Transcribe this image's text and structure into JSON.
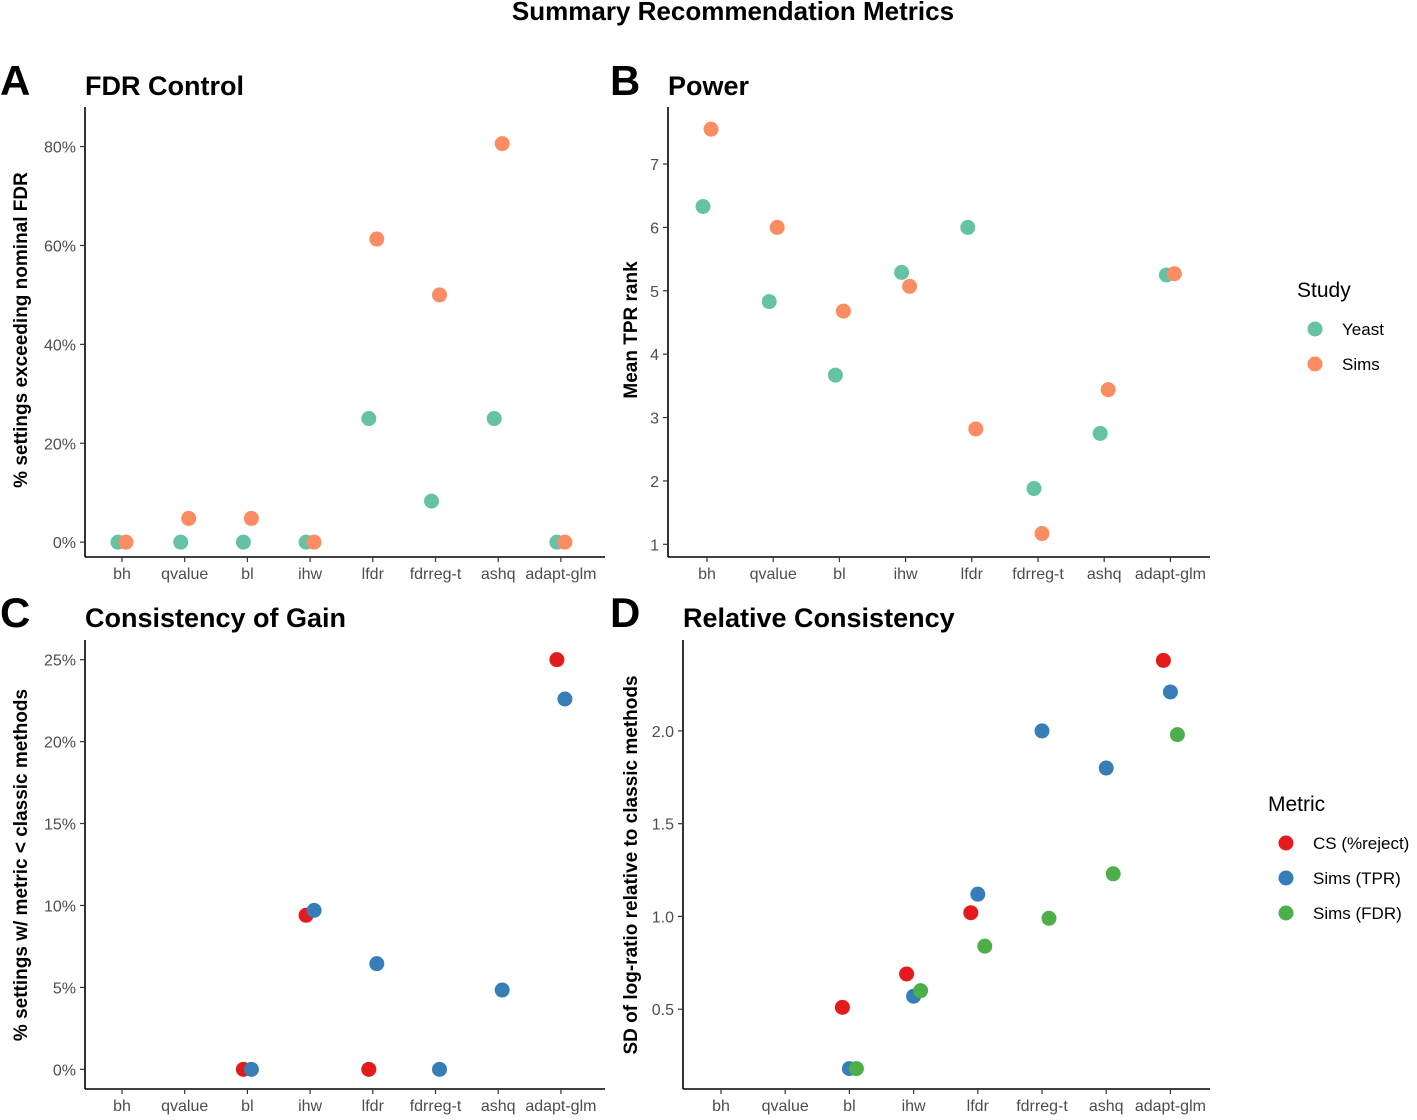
{
  "figure": {
    "title": "Summary Recommendation Metrics"
  },
  "legends": [
    {
      "title": "Study",
      "entries": [
        {
          "label": "Yeast",
          "color": "#66c2a5"
        },
        {
          "label": "Sims",
          "color": "#fc8d62"
        }
      ]
    },
    {
      "title": "Metric",
      "entries": [
        {
          "label": "CS (%reject)",
          "color": "#e41a1c"
        },
        {
          "label": "Sims (TPR)",
          "color": "#377eb8"
        },
        {
          "label": "Sims (FDR)",
          "color": "#4daf4a"
        }
      ]
    }
  ],
  "chart_data": [
    {
      "panel": "A",
      "type": "scatter",
      "title": "FDR Control",
      "xlabel": "",
      "ylabel": "% settings exceeding nominal FDR",
      "categories": [
        "bh",
        "qvalue",
        "bl",
        "ihw",
        "lfdr",
        "fdrreg-t",
        "ashq",
        "adapt-glm"
      ],
      "ylim": [
        -3,
        88
      ],
      "yticks": [
        0,
        20,
        40,
        60,
        80
      ],
      "yticklabels": [
        "0%",
        "20%",
        "40%",
        "60%",
        "80%"
      ],
      "grid": false,
      "legend": "Study",
      "series": [
        {
          "name": "Yeast",
          "color": "#66c2a5",
          "values": [
            0,
            0,
            0,
            0,
            25,
            8.3,
            25,
            0
          ]
        },
        {
          "name": "Sims",
          "color": "#fc8d62",
          "values": [
            0,
            4.8,
            4.8,
            0,
            61.3,
            50,
            80.6,
            0
          ]
        }
      ]
    },
    {
      "panel": "B",
      "type": "scatter",
      "title": "Power",
      "xlabel": "",
      "ylabel": "Mean TPR rank",
      "categories": [
        "bh",
        "qvalue",
        "bl",
        "ihw",
        "lfdr",
        "fdrreg-t",
        "ashq",
        "adapt-glm"
      ],
      "ylim": [
        0.8,
        7.9
      ],
      "yticks": [
        1,
        2,
        3,
        4,
        5,
        6,
        7
      ],
      "yticklabels": [
        "1",
        "2",
        "3",
        "4",
        "5",
        "6",
        "7"
      ],
      "grid": false,
      "legend": "Study",
      "series": [
        {
          "name": "Yeast",
          "color": "#66c2a5",
          "values": [
            6.33,
            4.83,
            3.67,
            5.29,
            6.0,
            1.88,
            2.75,
            5.25
          ]
        },
        {
          "name": "Sims",
          "color": "#fc8d62",
          "values": [
            7.55,
            6.0,
            4.68,
            5.07,
            2.82,
            1.17,
            3.44,
            5.27
          ]
        }
      ]
    },
    {
      "panel": "C",
      "type": "scatter",
      "title": "Consistency of Gain",
      "xlabel": "",
      "ylabel": "% settings w/ metric < classic methods",
      "categories": [
        "bh",
        "qvalue",
        "bl",
        "ihw",
        "lfdr",
        "fdrreg-t",
        "ashq",
        "adapt-glm"
      ],
      "ylim": [
        -1.2,
        26.2
      ],
      "yticks": [
        0,
        5,
        10,
        15,
        20,
        25
      ],
      "yticklabels": [
        "0%",
        "5%",
        "10%",
        "15%",
        "20%",
        "25%"
      ],
      "grid": false,
      "legend": "Metric",
      "series": [
        {
          "name": "CS (%reject)",
          "color": "#e41a1c",
          "values": [
            null,
            null,
            0,
            9.4,
            0,
            null,
            null,
            25
          ]
        },
        {
          "name": "Sims (TPR)",
          "color": "#377eb8",
          "values": [
            null,
            null,
            0,
            9.7,
            6.45,
            0,
            4.84,
            22.6
          ]
        }
      ]
    },
    {
      "panel": "D",
      "type": "scatter",
      "title": "Relative Consistency",
      "xlabel": "",
      "ylabel": "SD of log-ratio relative to classic methods",
      "categories": [
        "bh",
        "qvalue",
        "bl",
        "ihw",
        "lfdr",
        "fdrreg-t",
        "ashq",
        "adapt-glm"
      ],
      "ylim": [
        0.07,
        2.49
      ],
      "yticks": [
        0.5,
        1.0,
        1.5,
        2.0
      ],
      "yticklabels": [
        "0.5",
        "1.0",
        "1.5",
        "2.0"
      ],
      "grid": false,
      "legend": "Metric",
      "series": [
        {
          "name": "CS (%reject)",
          "color": "#e41a1c",
          "values": [
            null,
            null,
            0.51,
            0.69,
            1.02,
            null,
            null,
            2.38
          ]
        },
        {
          "name": "Sims (TPR)",
          "color": "#377eb8",
          "values": [
            null,
            null,
            0.18,
            0.57,
            1.12,
            2.0,
            1.8,
            2.21
          ]
        },
        {
          "name": "Sims (FDR)",
          "color": "#4daf4a",
          "values": [
            null,
            null,
            0.18,
            0.6,
            0.84,
            0.99,
            1.23,
            1.98
          ]
        }
      ]
    }
  ]
}
